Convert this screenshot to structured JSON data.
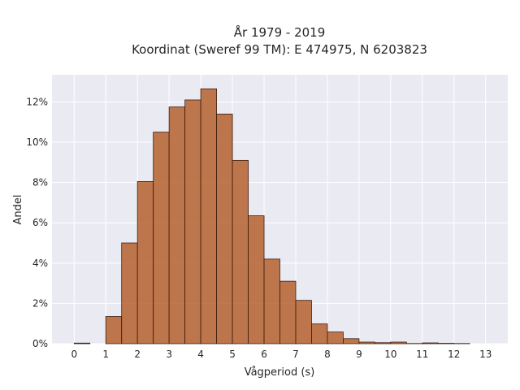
{
  "chart_data": {
    "type": "bar",
    "title_lines": [
      "År 1979 - 2019",
      "Koordinat (Sweref 99 TM): E 474975, N 6203823"
    ],
    "xlabel": "Vågperiod (s)",
    "ylabel": "Andel",
    "bin_width": 0.5,
    "bins": [
      {
        "x0": 0.0,
        "value": 0.0003
      },
      {
        "x0": 0.5,
        "value": 0.0
      },
      {
        "x0": 1.0,
        "value": 0.0135
      },
      {
        "x0": 1.5,
        "value": 0.05
      },
      {
        "x0": 2.0,
        "value": 0.0805
      },
      {
        "x0": 2.5,
        "value": 0.105
      },
      {
        "x0": 3.0,
        "value": 0.1175
      },
      {
        "x0": 3.5,
        "value": 0.121
      },
      {
        "x0": 4.0,
        "value": 0.1265
      },
      {
        "x0": 4.5,
        "value": 0.114
      },
      {
        "x0": 5.0,
        "value": 0.091
      },
      {
        "x0": 5.5,
        "value": 0.0635
      },
      {
        "x0": 6.0,
        "value": 0.042
      },
      {
        "x0": 6.5,
        "value": 0.031
      },
      {
        "x0": 7.0,
        "value": 0.0215
      },
      {
        "x0": 7.5,
        "value": 0.0098
      },
      {
        "x0": 8.0,
        "value": 0.0058
      },
      {
        "x0": 8.5,
        "value": 0.0025
      },
      {
        "x0": 9.0,
        "value": 0.0008
      },
      {
        "x0": 9.5,
        "value": 0.0005
      },
      {
        "x0": 10.0,
        "value": 0.0008
      },
      {
        "x0": 10.5,
        "value": 0.0001
      },
      {
        "x0": 11.0,
        "value": 0.0004
      },
      {
        "x0": 11.5,
        "value": 0.0002
      },
      {
        "x0": 12.0,
        "value": 0.0001
      },
      {
        "x0": 12.5,
        "value": 0.0
      }
    ],
    "xlim": [
      -0.7,
      13.7
    ],
    "ylim": [
      0,
      0.1335
    ],
    "xticks": [
      0,
      1,
      2,
      3,
      4,
      5,
      6,
      7,
      8,
      9,
      10,
      11,
      12,
      13
    ],
    "yticks": [
      0,
      0.02,
      0.04,
      0.06,
      0.08,
      0.1,
      0.12
    ],
    "ytick_labels": [
      "0%",
      "2%",
      "4%",
      "6%",
      "8%",
      "10%",
      "12%"
    ],
    "grid": true,
    "colors": {
      "bar_fill": "#b5602e",
      "bar_edge": "#3b1d0e",
      "plot_background": "#eaeaf2",
      "grid": "#ffffff"
    }
  }
}
